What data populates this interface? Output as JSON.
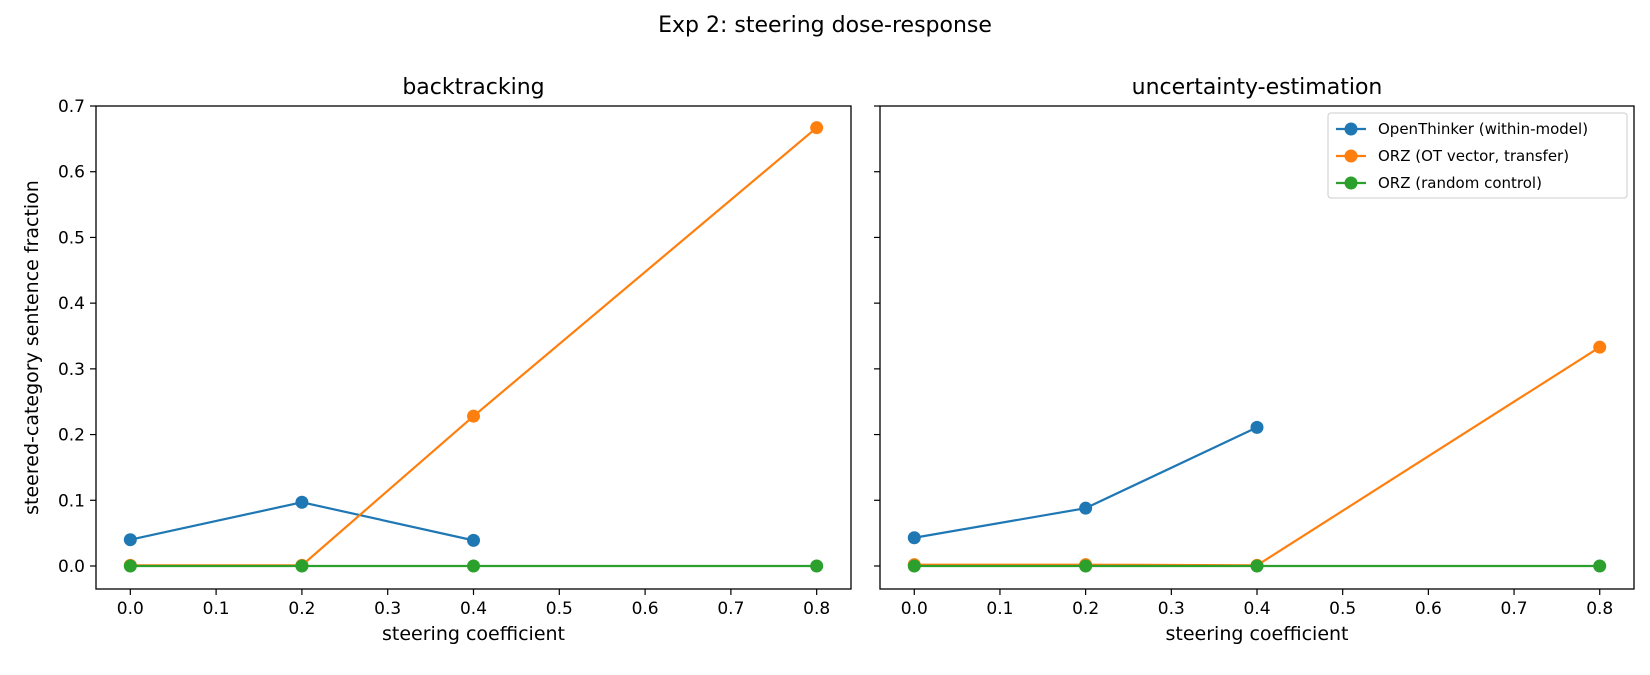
{
  "suptitle": "Exp 2: steering dose-response",
  "legend_entries": [
    {
      "name": "OpenThinker (within-model)",
      "color": "#1f77b4"
    },
    {
      "name": "ORZ (OT vector, transfer)",
      "color": "#ff7f0e"
    },
    {
      "name": "ORZ (random control)",
      "color": "#2ca02c"
    }
  ],
  "chart_data": [
    {
      "type": "line",
      "title": "backtracking",
      "xlabel": "steering coefficient",
      "ylabel": "steered-category sentence fraction",
      "xlim": [
        -0.04,
        0.84
      ],
      "ylim": [
        -0.035,
        0.7
      ],
      "xticks": [
        "0.0",
        "0.1",
        "0.2",
        "0.3",
        "0.4",
        "0.5",
        "0.6",
        "0.7",
        "0.8"
      ],
      "yticks": [
        "0.0",
        "0.1",
        "0.2",
        "0.3",
        "0.4",
        "0.5",
        "0.6",
        "0.7"
      ],
      "grid": false,
      "legend": "none",
      "series": [
        {
          "name": "OpenThinker (within-model)",
          "color": "#1f77b4",
          "x": [
            0.0,
            0.2,
            0.4
          ],
          "y": [
            0.04,
            0.097,
            0.039
          ]
        },
        {
          "name": "ORZ (OT vector, transfer)",
          "color": "#ff7f0e",
          "x": [
            0.0,
            0.2,
            0.4,
            0.8
          ],
          "y": [
            0.001,
            0.001,
            0.228,
            0.667
          ]
        },
        {
          "name": "ORZ (random control)",
          "color": "#2ca02c",
          "x": [
            0.0,
            0.2,
            0.4,
            0.8
          ],
          "y": [
            0.0,
            0.0,
            0.0,
            0.0
          ]
        }
      ]
    },
    {
      "type": "line",
      "title": "uncertainty-estimation",
      "xlabel": "steering coefficient",
      "ylabel": "",
      "xlim": [
        -0.04,
        0.84
      ],
      "ylim": [
        -0.035,
        0.7
      ],
      "xticks": [
        "0.0",
        "0.1",
        "0.2",
        "0.3",
        "0.4",
        "0.5",
        "0.6",
        "0.7",
        "0.8"
      ],
      "yticks": [],
      "grid": false,
      "legend": "top-right",
      "series": [
        {
          "name": "OpenThinker (within-model)",
          "color": "#1f77b4",
          "x": [
            0.0,
            0.2,
            0.4
          ],
          "y": [
            0.043,
            0.088,
            0.211
          ]
        },
        {
          "name": "ORZ (OT vector, transfer)",
          "color": "#ff7f0e",
          "x": [
            0.0,
            0.2,
            0.4,
            0.8
          ],
          "y": [
            0.002,
            0.002,
            0.001,
            0.333
          ]
        },
        {
          "name": "ORZ (random control)",
          "color": "#2ca02c",
          "x": [
            0.0,
            0.2,
            0.4,
            0.8
          ],
          "y": [
            0.0,
            0.0,
            0.0,
            0.0
          ]
        }
      ]
    }
  ]
}
